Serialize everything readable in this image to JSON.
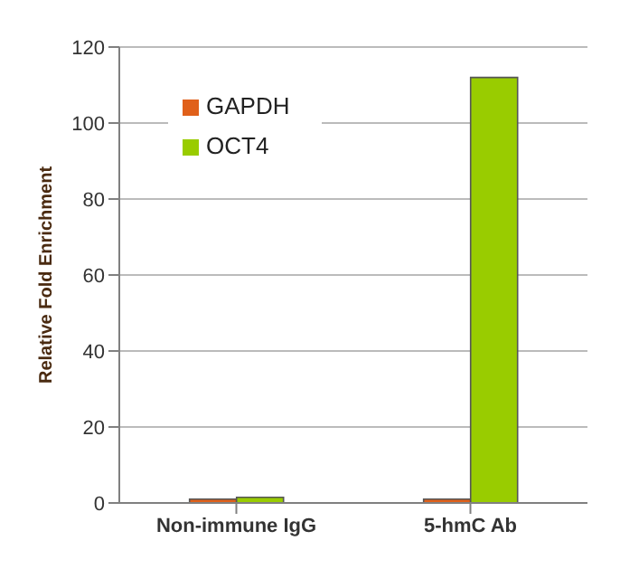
{
  "chart_data": {
    "type": "bar",
    "ylabel": "Relative Fold Enrichment",
    "categories": [
      "Non-immune IgG",
      "5-hmC Ab"
    ],
    "series": [
      {
        "name": "GAPDH",
        "color": "#e0601a",
        "values": [
          1,
          1
        ]
      },
      {
        "name": "OCT4",
        "color": "#99cc00",
        "values": [
          1.5,
          112
        ]
      }
    ],
    "ylim": [
      0,
      120
    ],
    "yticks": [
      0,
      20,
      40,
      60,
      80,
      100,
      120
    ],
    "grid": "y",
    "legend": "top left"
  }
}
